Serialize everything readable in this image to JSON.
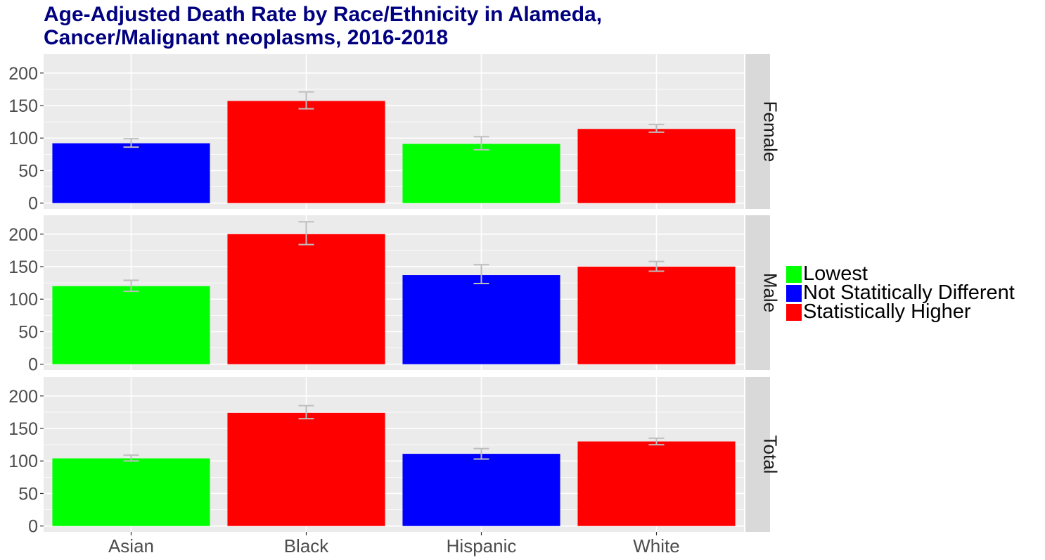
{
  "title_lines": [
    "Age-Adjusted Death Rate by Race/Ethnicity in Alameda,",
    "Cancer/Malignant neoplasms, 2016-2018"
  ],
  "colors": {
    "Lowest": "#00ff00",
    "Not Statitically Different": "#0000ff",
    "Statistically Higher": "#ff0000",
    "title": "#000080",
    "panel_background": "#ebebeb",
    "strip_background": "#d9d9d9",
    "error_bar": "#bebebe"
  },
  "legend": {
    "position": "right",
    "items": [
      {
        "label": "Lowest",
        "color": "#00ff00"
      },
      {
        "label": "Not Statitically Different",
        "color": "#0000ff"
      },
      {
        "label": "Statistically Higher",
        "color": "#ff0000"
      }
    ]
  },
  "chart_data": {
    "type": "bar",
    "title": "Age-Adjusted Death Rate by Race/Ethnicity in Alameda, Cancer/Malignant neoplasms, 2016-2018",
    "categories": [
      "Asian",
      "Black",
      "Hispanic",
      "White"
    ],
    "y_ticks": [
      0,
      50,
      100,
      150,
      200
    ],
    "ylim": [
      -9,
      229
    ],
    "grid": true,
    "legend_position": "right",
    "facets": [
      {
        "label": "Female",
        "values": [
          92,
          157,
          91,
          114
        ],
        "ci_low": [
          86,
          145,
          82,
          109
        ],
        "ci_high": [
          99,
          171,
          102,
          121
        ],
        "groups": [
          "Not Statitically Different",
          "Statistically Higher",
          "Lowest",
          "Statistically Higher"
        ]
      },
      {
        "label": "Male",
        "values": [
          120,
          200,
          137,
          150
        ],
        "ci_low": [
          112,
          184,
          124,
          143
        ],
        "ci_high": [
          129,
          219,
          153,
          158
        ],
        "groups": [
          "Lowest",
          "Statistically Higher",
          "Not Statitically Different",
          "Statistically Higher"
        ]
      },
      {
        "label": "Total",
        "values": [
          104,
          174,
          111,
          130
        ],
        "ci_low": [
          100,
          165,
          103,
          125
        ],
        "ci_high": [
          109,
          185,
          119,
          135
        ],
        "groups": [
          "Lowest",
          "Statistically Higher",
          "Not Statitically Different",
          "Statistically Higher"
        ]
      }
    ]
  }
}
